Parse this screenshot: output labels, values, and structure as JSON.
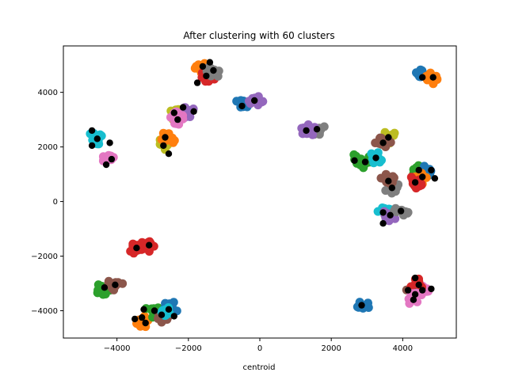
{
  "chart_data": {
    "type": "scatter",
    "title": "After clustering with 60 clusters",
    "xlabel": "centroid",
    "ylabel": "",
    "xlim": [
      -5500,
      5500
    ],
    "ylim": [
      -5000,
      5700
    ],
    "xticks": [
      -4000,
      -2000,
      0,
      2000,
      4000
    ],
    "yticks": [
      -4000,
      -2000,
      0,
      2000,
      4000
    ],
    "grid": false,
    "legend": "none",
    "palette": {
      "blue": "#1f77b4",
      "orange": "#ff7f0e",
      "green": "#2ca02c",
      "red": "#d62728",
      "purple": "#9467bd",
      "brown": "#8c564b",
      "pink": "#e377c2",
      "gray": "#7f7f7f",
      "olive": "#bcbd22",
      "cyan": "#17becf",
      "centroid": "#000000"
    },
    "clusters": [
      {
        "x": -4600,
        "y": 2300,
        "color": "cyan"
      },
      {
        "x": -4200,
        "y": 1600,
        "color": "pink"
      },
      {
        "x": -1600,
        "y": 4900,
        "color": "orange"
      },
      {
        "x": -1450,
        "y": 4600,
        "color": "red"
      },
      {
        "x": -1300,
        "y": 4750,
        "color": "gray"
      },
      {
        "x": -2300,
        "y": 3200,
        "color": "olive"
      },
      {
        "x": -2050,
        "y": 3300,
        "color": "purple"
      },
      {
        "x": -2300,
        "y": 3050,
        "color": "pink"
      },
      {
        "x": -2650,
        "y": 2100,
        "color": "olive"
      },
      {
        "x": -2600,
        "y": 2300,
        "color": "orange"
      },
      {
        "x": -500,
        "y": 3500,
        "color": "blue"
      },
      {
        "x": -100,
        "y": 3700,
        "color": "purple"
      },
      {
        "x": 1650,
        "y": 2650,
        "color": "gray"
      },
      {
        "x": 1350,
        "y": 2600,
        "color": "purple"
      },
      {
        "x": 2700,
        "y": 1500,
        "color": "green"
      },
      {
        "x": 3000,
        "y": 1450,
        "color": "green"
      },
      {
        "x": 3250,
        "y": 1600,
        "color": "cyan"
      },
      {
        "x": 3600,
        "y": 2350,
        "color": "olive"
      },
      {
        "x": 3450,
        "y": 2150,
        "color": "brown"
      },
      {
        "x": 3700,
        "y": 500,
        "color": "gray"
      },
      {
        "x": 3600,
        "y": 800,
        "color": "brown"
      },
      {
        "x": 3500,
        "y": -400,
        "color": "cyan"
      },
      {
        "x": 3650,
        "y": -500,
        "color": "purple"
      },
      {
        "x": 3950,
        "y": -350,
        "color": "gray"
      },
      {
        "x": 4450,
        "y": 1100,
        "color": "green"
      },
      {
        "x": 4700,
        "y": 1100,
        "color": "blue"
      },
      {
        "x": 4500,
        "y": 800,
        "color": "orange"
      },
      {
        "x": 4350,
        "y": 700,
        "color": "red"
      },
      {
        "x": 4550,
        "y": 4600,
        "color": "blue"
      },
      {
        "x": 4800,
        "y": 4550,
        "color": "orange"
      },
      {
        "x": -3450,
        "y": -1700,
        "color": "red"
      },
      {
        "x": -3150,
        "y": -1600,
        "color": "red"
      },
      {
        "x": -4400,
        "y": -3200,
        "color": "green"
      },
      {
        "x": -4050,
        "y": -3050,
        "color": "brown"
      },
      {
        "x": -3300,
        "y": -4400,
        "color": "orange"
      },
      {
        "x": -3000,
        "y": -4000,
        "color": "green"
      },
      {
        "x": -2700,
        "y": -4200,
        "color": "brown"
      },
      {
        "x": -2500,
        "y": -3900,
        "color": "blue"
      },
      {
        "x": -2700,
        "y": -4050,
        "color": "cyan"
      },
      {
        "x": 2850,
        "y": -3800,
        "color": "blue"
      },
      {
        "x": 4300,
        "y": -3300,
        "color": "brown"
      },
      {
        "x": 4600,
        "y": -3200,
        "color": "pink"
      },
      {
        "x": 4400,
        "y": -3000,
        "color": "red"
      },
      {
        "x": 4300,
        "y": -3550,
        "color": "pink"
      }
    ],
    "centroids": [
      {
        "x": -4700,
        "y": 2600
      },
      {
        "x": -4550,
        "y": 2300
      },
      {
        "x": -4700,
        "y": 2050
      },
      {
        "x": -4200,
        "y": 2150
      },
      {
        "x": -4150,
        "y": 1550
      },
      {
        "x": -4300,
        "y": 1350
      },
      {
        "x": -1600,
        "y": 4950
      },
      {
        "x": -1400,
        "y": 5100
      },
      {
        "x": -1300,
        "y": 4800
      },
      {
        "x": -1500,
        "y": 4600
      },
      {
        "x": -1750,
        "y": 4350
      },
      {
        "x": -2400,
        "y": 3250
      },
      {
        "x": -2150,
        "y": 3450
      },
      {
        "x": -1850,
        "y": 3300
      },
      {
        "x": -2300,
        "y": 3000
      },
      {
        "x": -2650,
        "y": 2350
      },
      {
        "x": -2700,
        "y": 2050
      },
      {
        "x": -2550,
        "y": 1750
      },
      {
        "x": -500,
        "y": 3500
      },
      {
        "x": -150,
        "y": 3700
      },
      {
        "x": 1300,
        "y": 2600
      },
      {
        "x": 1600,
        "y": 2650
      },
      {
        "x": 2650,
        "y": 1500
      },
      {
        "x": 2950,
        "y": 1450
      },
      {
        "x": 3250,
        "y": 1600
      },
      {
        "x": 3450,
        "y": 2150
      },
      {
        "x": 3600,
        "y": 2350
      },
      {
        "x": 3600,
        "y": 750
      },
      {
        "x": 3700,
        "y": 500
      },
      {
        "x": 3450,
        "y": -400
      },
      {
        "x": 3650,
        "y": -500
      },
      {
        "x": 3950,
        "y": -350
      },
      {
        "x": 3450,
        "y": -800
      },
      {
        "x": 4450,
        "y": 1150
      },
      {
        "x": 4800,
        "y": 1150
      },
      {
        "x": 4550,
        "y": 900
      },
      {
        "x": 4350,
        "y": 700
      },
      {
        "x": 4900,
        "y": 850
      },
      {
        "x": 4550,
        "y": 4550
      },
      {
        "x": 4850,
        "y": 4550
      },
      {
        "x": -3450,
        "y": -1700
      },
      {
        "x": -3100,
        "y": -1600
      },
      {
        "x": -4350,
        "y": -3150
      },
      {
        "x": -4050,
        "y": -3050
      },
      {
        "x": -3500,
        "y": -4300
      },
      {
        "x": -3250,
        "y": -3950
      },
      {
        "x": -3300,
        "y": -4250
      },
      {
        "x": -3200,
        "y": -4450
      },
      {
        "x": -2950,
        "y": -4000
      },
      {
        "x": -2750,
        "y": -4150
      },
      {
        "x": -2550,
        "y": -3950
      },
      {
        "x": -2400,
        "y": -4200
      },
      {
        "x": 2850,
        "y": -3800
      },
      {
        "x": 4350,
        "y": -2800
      },
      {
        "x": 4450,
        "y": -3050
      },
      {
        "x": 4150,
        "y": -3250
      },
      {
        "x": 4350,
        "y": -3400
      },
      {
        "x": 4800,
        "y": -3200
      },
      {
        "x": 4300,
        "y": -3600
      },
      {
        "x": 4550,
        "y": -3250
      }
    ]
  }
}
